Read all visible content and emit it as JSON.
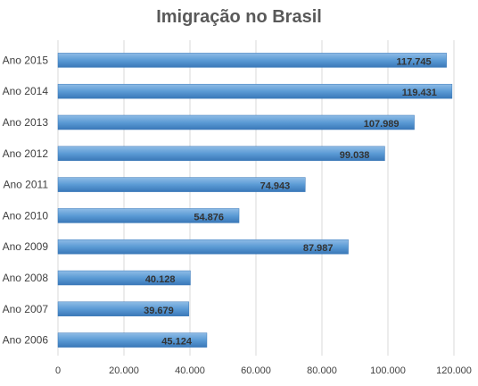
{
  "chart_data": {
    "type": "bar",
    "orientation": "horizontal",
    "title": "Imigração no Brasil",
    "categories": [
      "Ano 2015",
      "Ano 2014",
      "Ano 2013",
      "Ano 2012",
      "Ano 2011",
      "Ano 2010",
      "Ano 2009",
      "Ano 2008",
      "Ano 2007",
      "Ano 2006"
    ],
    "values": [
      117745,
      119431,
      107989,
      99038,
      74943,
      54876,
      87987,
      40128,
      39679,
      45124
    ],
    "value_labels": [
      "117.745",
      "119.431",
      "107.989",
      "99.038",
      "74.943",
      "54.876",
      "87.987",
      "40.128",
      "39.679",
      "45.124"
    ],
    "xticks": [
      0,
      20000,
      40000,
      60000,
      80000,
      100000,
      120000
    ],
    "xtick_labels": [
      "0",
      "20.000",
      "40.000",
      "60.000",
      "80.000",
      "100.000",
      "120.000"
    ],
    "xlim": [
      0,
      120000
    ],
    "xlabel": "",
    "ylabel": "",
    "grid": true,
    "legend": false,
    "colors": {
      "bar": "#5B9BD5",
      "bar_dark": "#3A78B8",
      "bar_light": "#8FBCE6",
      "grid": "#D9D9D9"
    }
  }
}
